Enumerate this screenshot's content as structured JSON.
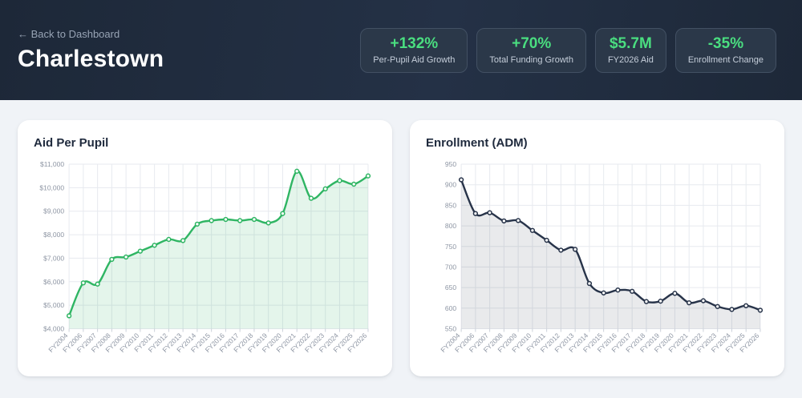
{
  "header": {
    "back_arrow": "←",
    "back_label": "Back to Dashboard",
    "title": "Charlestown",
    "accent_color": "#4ade80",
    "stats": [
      {
        "value": "+132%",
        "label": "Per-Pupil Aid Growth"
      },
      {
        "value": "+70%",
        "label": "Total Funding Growth"
      },
      {
        "value": "$5.7M",
        "label": "FY2026 Aid"
      },
      {
        "value": "-35%",
        "label": "Enrollment Change"
      }
    ]
  },
  "chart_data": [
    {
      "type": "area",
      "title": "Aid Per Pupil",
      "categories": [
        "FY2004",
        "FY2006",
        "FY2007",
        "FY2008",
        "FY2009",
        "FY2010",
        "FY2011",
        "FY2012",
        "FY2013",
        "FY2014",
        "FY2015",
        "FY2016",
        "FY2017",
        "FY2018",
        "FY2019",
        "FY2020",
        "FY2021",
        "FY2022",
        "FY2023",
        "FY2024",
        "FY2025",
        "FY2026"
      ],
      "values": [
        4550,
        5950,
        5900,
        6950,
        7050,
        7300,
        7550,
        7800,
        7750,
        8450,
        8600,
        8650,
        8600,
        8650,
        8500,
        8900,
        10700,
        9550,
        9950,
        10300,
        10150,
        10500
      ],
      "ylim": [
        4000,
        11000
      ],
      "ytick_step": 1000,
      "yformat": "currency",
      "grid": true,
      "legend": "none",
      "line_color": "#2fb563",
      "fill_color": "rgba(47,181,99,0.13)",
      "point_fill": "#ffffff"
    },
    {
      "type": "area",
      "title": "Enrollment (ADM)",
      "categories": [
        "FY2004",
        "FY2006",
        "FY2007",
        "FY2008",
        "FY2009",
        "FY2010",
        "FY2011",
        "FY2012",
        "FY2013",
        "FY2014",
        "FY2015",
        "FY2016",
        "FY2017",
        "FY2018",
        "FY2019",
        "FY2020",
        "FY2021",
        "FY2022",
        "FY2023",
        "FY2024",
        "FY2025",
        "FY2026"
      ],
      "values": [
        912,
        830,
        832,
        812,
        813,
        789,
        765,
        741,
        743,
        660,
        637,
        644,
        641,
        616,
        617,
        636,
        613,
        618,
        604,
        597,
        606,
        595
      ],
      "ylim": [
        550,
        950
      ],
      "ytick_step": 50,
      "yformat": "number",
      "grid": true,
      "legend": "none",
      "line_color": "#273349",
      "fill_color": "rgba(39,51,73,0.10)",
      "point_fill": "#ffffff"
    }
  ]
}
